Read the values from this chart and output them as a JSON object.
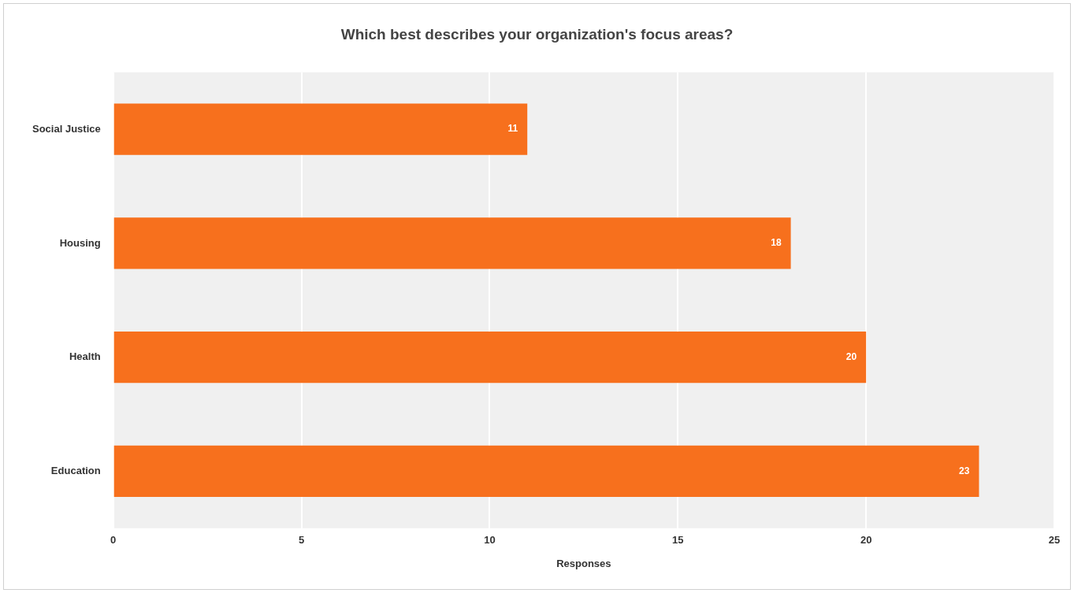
{
  "chart_data": {
    "type": "bar",
    "orientation": "horizontal",
    "title": "Which best describes your organization's focus areas?",
    "xlabel": "Responses",
    "categories": [
      "Social Justice",
      "Housing",
      "Health",
      "Education"
    ],
    "values": [
      11,
      18,
      20,
      23
    ],
    "color": "#f7701d",
    "xlim": [
      0,
      25
    ],
    "xticks": [
      0,
      5,
      10,
      15,
      20,
      25
    ],
    "grid": "x",
    "data_labels": true
  }
}
